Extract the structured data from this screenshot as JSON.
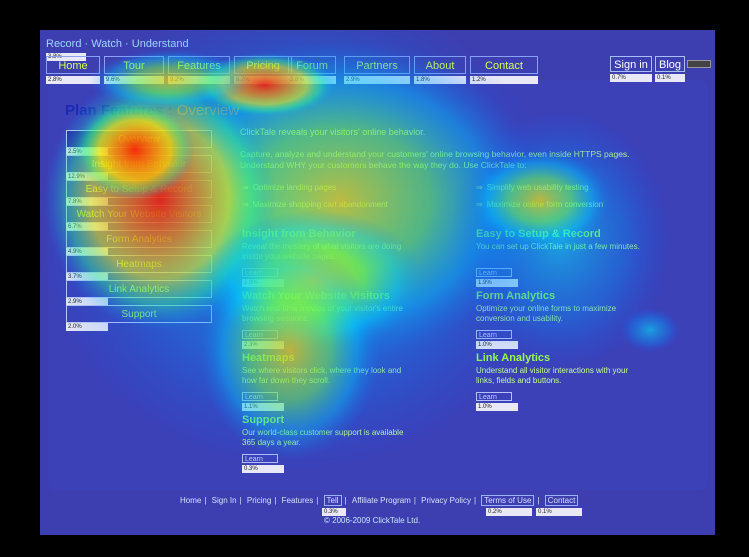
{
  "header": {
    "tagline": "Record · Watch · Understand",
    "tagline_pct": "3.8%",
    "nav": [
      {
        "label": "Home",
        "pct": "2.8%"
      },
      {
        "label": "Tour",
        "pct": "9.6%"
      },
      {
        "label": "Features",
        "pct": "9.2%"
      },
      {
        "label": "Pricing",
        "pct": "8.7%"
      },
      {
        "label": "Forum",
        "pct": "3.8%"
      },
      {
        "label": "Partners",
        "pct": "2.9%"
      },
      {
        "label": "About",
        "pct": "1.8%"
      },
      {
        "label": "Contact",
        "pct": "1.2%"
      }
    ],
    "sign_in": "Sign in",
    "sign_in_pct": "0.7%",
    "blog": "Blog",
    "blog_pct": "0.1%"
  },
  "page": {
    "title": "Plan Features :",
    "title_sub": "Overview"
  },
  "sidebar": {
    "items": [
      {
        "label": "Overview",
        "pct": "2.5%"
      },
      {
        "label": "Insight from Behavior",
        "pct": "12.9%"
      },
      {
        "label": "Easy to Setup & Record",
        "pct": "7.8%"
      },
      {
        "label": "Watch Your Website Visitors",
        "pct": "6.7%"
      },
      {
        "label": "Form Analytics",
        "pct": "4.9%"
      },
      {
        "label": "Heatmaps",
        "pct": "3.7%"
      },
      {
        "label": "Link Analytics",
        "pct": "2.9%"
      },
      {
        "label": "Support",
        "pct": "2.0%"
      }
    ]
  },
  "intro": {
    "lead": "ClickTale reveals your visitors' online behavior.",
    "para": "Capture, analyze and understand your customers' online browsing behavior, even inside HTTPS pages. Understand WHY your customers behave the way they do. Use ClickTale to:",
    "bullets_left": [
      "Optimize landing pages",
      "Maximize shopping cart abandonment"
    ],
    "bullets_right": [
      "Simplify web usability testing",
      "Maximize online form conversion"
    ]
  },
  "sections": {
    "insight": {
      "title": "Insight from Behavior",
      "text": "Reveal the mystery of what visitors are doing inside your website pages.",
      "more": "Learn more",
      "pct": "1.8%"
    },
    "watch": {
      "title": "Watch Your Website Visitors",
      "text": "Watch real-time movies of your visitor's entire browsing sessions.",
      "more": "Learn more",
      "pct": "2.3%"
    },
    "heatmaps": {
      "title": "Heatmaps",
      "text": "See where visitors click, where they look and how far down they scroll.",
      "more": "Learn more",
      "pct": "1.1%"
    },
    "support": {
      "title": "Support",
      "text": "Our world-class customer support is available 365 days a year.",
      "more": "Learn more",
      "pct": "0.3%"
    },
    "easy": {
      "title": "Easy to Setup & Record",
      "text": "You can set up ClickTale in just a few minutes.",
      "more": "Learn more",
      "pct": "1.9%"
    },
    "forms": {
      "title": "Form Analytics",
      "text": "Optimize your online forms to maximize conversion and usability.",
      "more": "Learn more",
      "pct": "1.0%"
    },
    "links": {
      "title": "Link Analytics",
      "text": "Understand all visitor interactions with your links, fields and buttons.",
      "more": "Learn more",
      "pct": "1.0%"
    }
  },
  "footer": {
    "links": [
      "Home",
      "Sign In",
      "Pricing",
      "Features",
      "Tell",
      "Affiliate Program",
      "Privacy Policy",
      "Terms of Use",
      "Contact"
    ],
    "pct_tell": "0.3%",
    "pct_terms": "0.2%",
    "pct_contact": "0.1%",
    "copyright": "© 2006-2009 ClickTale Ltd."
  }
}
